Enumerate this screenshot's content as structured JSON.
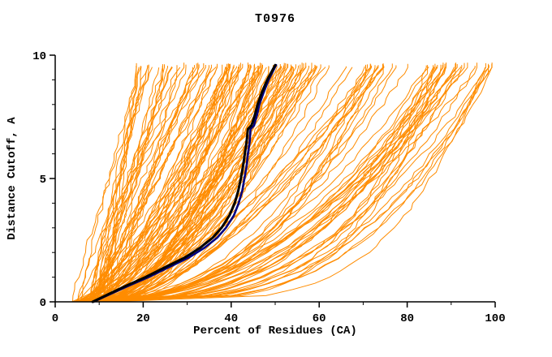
{
  "chart_data": {
    "type": "line",
    "title": "T0976",
    "xlabel": "Percent of Residues (CA)",
    "ylabel": "Distance Cutoff, A",
    "xlim": [
      0,
      100
    ],
    "ylim": [
      0,
      10
    ],
    "x_ticks": [
      0,
      20,
      40,
      60,
      80,
      100
    ],
    "x_minor_step": 10,
    "y_ticks": [
      0,
      5,
      10
    ],
    "y_minor_step": 1,
    "grid": false,
    "legend": "none",
    "colors": {
      "ensemble": "#ff8c00",
      "highlight": "#000000",
      "reference": "#000080",
      "axis": "#000000",
      "background": "#ffffff"
    },
    "highlight_curve": {
      "name": "highlighted-model",
      "color": "#000000",
      "y": [
        0,
        0.3,
        0.6,
        1.0,
        1.4,
        1.8,
        2.2,
        2.6,
        3.0,
        3.5,
        4.0,
        4.5,
        5.0,
        5.5,
        6.0,
        6.5,
        7.0,
        7.15,
        7.3,
        7.6,
        8.0,
        8.5,
        9.0,
        9.6
      ],
      "x": [
        8.5,
        12.0,
        15.5,
        20.5,
        25.0,
        29.5,
        33.0,
        35.8,
        37.8,
        39.6,
        40.8,
        41.6,
        42.2,
        42.7,
        43.1,
        43.5,
        43.8,
        44.6,
        44.9,
        45.4,
        46.0,
        47.0,
        48.2,
        50.0
      ]
    },
    "reference_curve": {
      "name": "reference-model",
      "color": "#000080",
      "y": [
        0,
        0.3,
        0.6,
        1.0,
        1.4,
        1.8,
        2.2,
        2.6,
        3.0,
        3.5,
        4.0,
        4.5,
        5.0,
        5.5,
        6.0,
        6.5,
        7.0,
        7.15,
        7.3,
        7.6,
        8.0,
        8.5,
        9.0,
        9.6
      ],
      "x": [
        8.7,
        12.3,
        16.0,
        21.2,
        25.8,
        30.4,
        34.0,
        36.8,
        38.8,
        40.6,
        41.7,
        42.5,
        43.0,
        43.5,
        43.8,
        44.2,
        44.4,
        45.2,
        45.4,
        45.9,
        46.4,
        47.4,
        48.5,
        50.2
      ]
    },
    "ensemble": {
      "name": "all-models",
      "color": "#ff8c00",
      "count": 150,
      "seed": 1976,
      "y_step": 0.25,
      "y_top_range": [
        9.5,
        9.7
      ],
      "x_start_range": [
        3.5,
        13
      ],
      "jitter": 1.0,
      "groups": [
        {
          "weight": 0.22,
          "x_end_range": [
            18,
            38
          ],
          "p_range": [
            0.8,
            1.4
          ]
        },
        {
          "weight": 0.4,
          "x_end_range": [
            38,
            60
          ],
          "p_range": [
            0.4,
            0.8
          ]
        },
        {
          "weight": 0.15,
          "x_end_range": [
            60,
            80
          ],
          "p_range": [
            0.35,
            0.7
          ]
        },
        {
          "weight": 0.23,
          "x_end_range": [
            80,
            100
          ],
          "p_range": [
            0.2,
            0.5
          ]
        }
      ]
    }
  }
}
